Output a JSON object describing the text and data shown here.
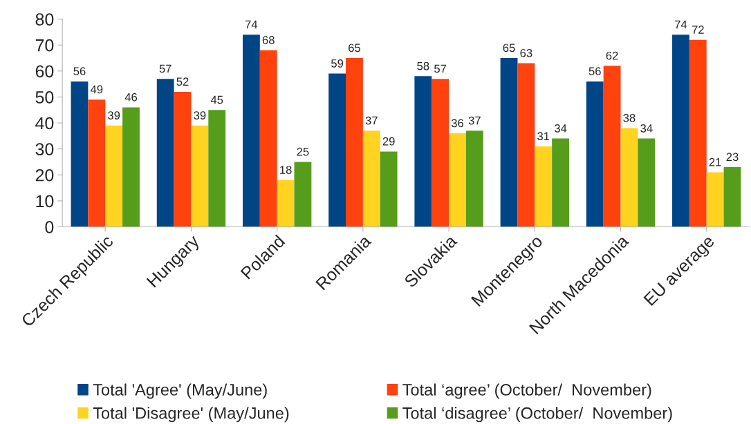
{
  "chart_data": {
    "type": "bar",
    "categories": [
      "Czech Republic",
      "Hungary",
      "Poland",
      "Romania",
      "Slovakia",
      "Montenegro",
      "North Macedonia",
      "EU average"
    ],
    "series": [
      {
        "name": "Total 'Agree' (May/June)",
        "color": "#004586",
        "values": [
          56,
          57,
          74,
          59,
          58,
          65,
          56,
          74
        ]
      },
      {
        "name": "Total ‘agree’ (October/  November)",
        "color": "#ff420e",
        "values": [
          49,
          52,
          68,
          65,
          57,
          63,
          62,
          72
        ]
      },
      {
        "name": "Total 'Disagree' (May/June)",
        "color": "#ffd320",
        "values": [
          39,
          39,
          18,
          37,
          36,
          31,
          38,
          21
        ]
      },
      {
        "name": "Total ‘disagree’ (October/  November)",
        "color": "#579d1c",
        "values": [
          46,
          45,
          25,
          29,
          37,
          34,
          34,
          23
        ]
      }
    ],
    "ylim": [
      0,
      80
    ],
    "yticks": [
      0,
      10,
      20,
      30,
      40,
      50,
      60,
      70,
      80
    ],
    "data_labels": true,
    "grid": false,
    "legend": "bottom"
  }
}
